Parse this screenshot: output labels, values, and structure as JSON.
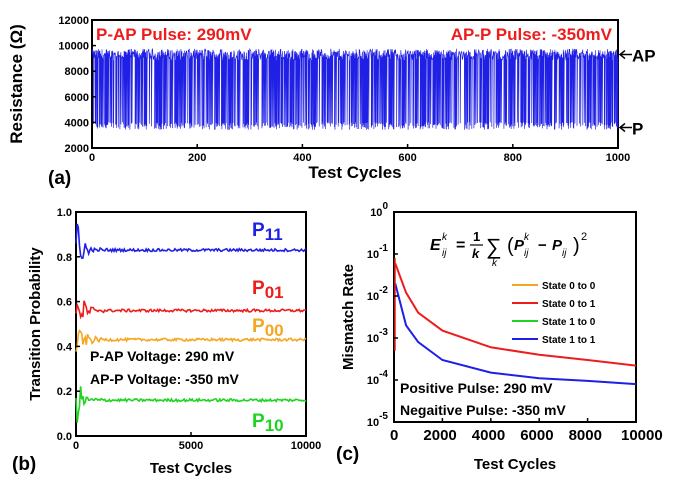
{
  "figure": {
    "colors": {
      "blue": "#1f1fe6",
      "red": "#ee1c1c",
      "orange": "#f5a623",
      "green": "#21d321",
      "black": "#000000"
    }
  },
  "chart_data": [
    {
      "id": "a",
      "type": "line",
      "panel_label": "(a)",
      "xlabel": "Test Cycles",
      "ylabel": "Resistance (Ω)",
      "xlim": [
        0,
        1000
      ],
      "ylim": [
        2000,
        12000
      ],
      "xticks": [
        0,
        200,
        400,
        600,
        800,
        1000
      ],
      "yticks": [
        2000,
        4000,
        6000,
        8000,
        10000,
        12000
      ],
      "annotations": [
        "P-AP Pulse: 290mV",
        "AP-P Pulse: -350mV"
      ],
      "state_labels": [
        {
          "text": "AP",
          "value": 9300
        },
        {
          "text": "P",
          "value": 3600
        }
      ],
      "series": [
        {
          "color": "#1f1fe6",
          "high_level": 9300,
          "low_level": 3600,
          "cycles": 1000
        }
      ]
    },
    {
      "id": "b",
      "type": "line",
      "panel_label": "(b)",
      "xlabel": "Test Cycles",
      "ylabel": "Transition Probability",
      "xlim": [
        0,
        10000
      ],
      "ylim": [
        0,
        1
      ],
      "xticks": [
        0,
        5000,
        10000
      ],
      "yticks": [
        0.0,
        0.2,
        0.4,
        0.6,
        0.8,
        1.0
      ],
      "ytick_labels": [
        "0.0",
        "0.2",
        "0.4",
        "0.6",
        "0.8",
        "1.0"
      ],
      "notes": [
        "P-AP Voltage: 290 mV",
        "AP-P Voltage: -350 mV"
      ],
      "series": [
        {
          "label_main": "P",
          "label_sub": "11",
          "color": "#1f1fe6",
          "final": 0.83
        },
        {
          "label_main": "P",
          "label_sub": "01",
          "color": "#ee1c1c",
          "final": 0.56
        },
        {
          "label_main": "P",
          "label_sub": "00",
          "color": "#f5a623",
          "final": 0.43
        },
        {
          "label_main": "P",
          "label_sub": "10",
          "color": "#21d321",
          "final": 0.16
        }
      ]
    },
    {
      "id": "c",
      "type": "line",
      "panel_label": "(c)",
      "xlabel": "Test Cycles",
      "ylabel": "Mismatch Rate",
      "xlim": [
        0,
        10000
      ],
      "ylim": [
        1e-05,
        1
      ],
      "yscale": "log",
      "xticks": [
        0,
        2000,
        4000,
        6000,
        8000,
        10000
      ],
      "ytick_exponents": [
        -5,
        -4,
        -3,
        -2,
        -1,
        0
      ],
      "formula": {
        "lhs": "E",
        "lhs_sub": "ij",
        "lhs_sup": "k",
        "equals": "=",
        "frac_num": "1",
        "frac_den": "k",
        "sum": "∑",
        "sum_sub": "k",
        "term1": "P",
        "term1_sub": "ij",
        "term1_sup": "k",
        "minus": "−",
        "term2": "P",
        "term2_sub": "ij",
        "power": "2"
      },
      "legend": [
        "State 0 to 0",
        "State 0 to 1",
        "State 1 to 0",
        "State 1 to 1"
      ],
      "legend_colors": [
        "#f5a623",
        "#ee1c1c",
        "#21d321",
        "#1f1fe6"
      ],
      "notes": [
        "Positive Pulse: 290 mV",
        "Negaitive Pulse: -350 mV"
      ],
      "series": [
        {
          "name": "State 0 to 1",
          "color": "#ee1c1c",
          "x": [
            50,
            500,
            1000,
            2000,
            4000,
            6000,
            8000,
            10000
          ],
          "y": [
            0.06,
            0.012,
            0.004,
            0.0015,
            0.0006,
            0.0004,
            0.0003,
            0.00022
          ]
        },
        {
          "name": "State 1 to 1",
          "color": "#1f1fe6",
          "x": [
            50,
            500,
            1000,
            2000,
            4000,
            6000,
            8000,
            10000
          ],
          "y": [
            0.02,
            0.002,
            0.0008,
            0.0003,
            0.00015,
            0.00011,
            9.5e-05,
            8e-05
          ]
        }
      ]
    }
  ]
}
